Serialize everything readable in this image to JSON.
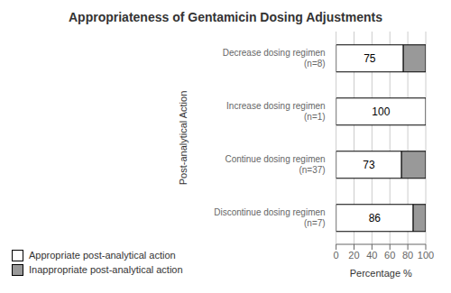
{
  "chart_data": {
    "type": "bar",
    "orientation": "horizontal",
    "stacked": true,
    "title": "Appropriateness of Gentamicin Dosing Adjustments",
    "categories": [
      "Decrease dosing regimen\n(n=8)",
      "Increase dosing regimen\n(n=1)",
      "Continue dosing regimen\n(n=37)",
      "Discontinue dosing regimen\n(n=7)"
    ],
    "series": [
      {
        "name": "Appropriate post-analytical action",
        "color": "#ffffff",
        "values": [
          75,
          100,
          73,
          86
        ],
        "data_labels": true
      },
      {
        "name": "Inappropriate post-analytical action",
        "color": "#999999",
        "values": [
          25,
          0,
          27,
          14
        ]
      }
    ],
    "xlabel": "Percentage %",
    "ylabel": "Post-analytical Action",
    "xlim": [
      0,
      100
    ],
    "xticks": [
      0,
      20,
      40,
      60,
      80,
      100
    ],
    "grid": true,
    "legend": "lower left"
  }
}
